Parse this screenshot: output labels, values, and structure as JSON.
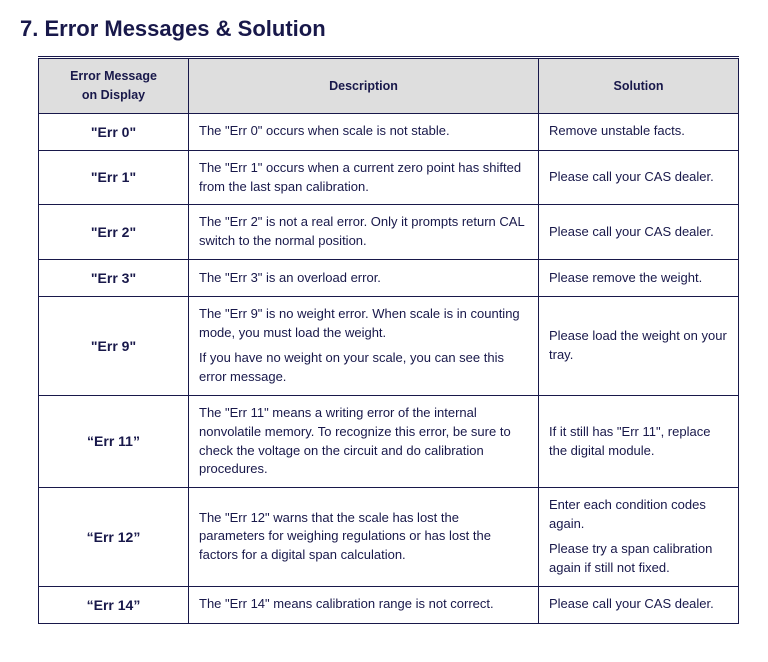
{
  "heading": "7. Error Messages & Solution",
  "headers": {
    "msg_line1": "Error Message",
    "msg_line2": "on Display",
    "desc": "Description",
    "sol": "Solution"
  },
  "rows": [
    {
      "code": "\"Err 0\"",
      "desc": "The \"Err 0\" occurs when scale is not stable.",
      "sol": "Remove unstable facts."
    },
    {
      "code": "\"Err 1\"",
      "desc": "The \"Err 1\" occurs when a current zero point has shifted from the last span calibration.",
      "sol": "Please call your CAS dealer."
    },
    {
      "code": "\"Err 2\"",
      "desc": "The \"Err 2\" is not a real error. Only it prompts return CAL switch to the normal position.",
      "desc_justify": true,
      "sol": "Please call your CAS dealer."
    },
    {
      "code": "\"Err 3\"",
      "desc": "The \"Err 3\" is an overload error.",
      "sol": "Please remove the weight."
    },
    {
      "code": "\"Err 9\"",
      "desc1": "The \"Err 9\" is no weight error. When scale is in counting mode, you must load the weight.",
      "desc2": "If you have no weight on your scale, you can see this error message.",
      "sol": "Please load the weight on your tray."
    },
    {
      "code": "“Err 11”",
      "desc": "The \"Err 11\" means a writing error of the internal nonvolatile memory. To recognize this error, be sure to check the voltage on the circuit and do calibration procedures.",
      "desc_justify": true,
      "sol": "If it still has \"Err 11\", replace the digital module."
    },
    {
      "code": "“Err 12”",
      "desc": "The \"Err 12\" warns that the scale has lost the parameters for weighing regulations or has lost the factors for a digital span calculation.",
      "desc_justify": true,
      "sol1": "Enter each condition codes again.",
      "sol2": "Please try a span calibration again if still not fixed."
    },
    {
      "code": "“Err 14”",
      "desc": "The \"Err 14\" means calibration range is not correct.",
      "desc_justify": true,
      "sol": "Please call your CAS dealer."
    }
  ]
}
